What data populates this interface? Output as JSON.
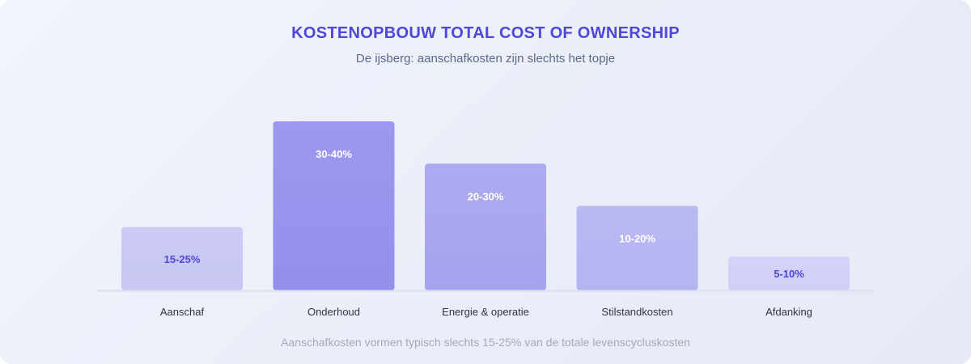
{
  "header": {
    "title": "KOSTENOPBOUW TOTAL COST OF OWNERSHIP",
    "subtitle": "De ijsberg: aanschafkosten zijn slechts het topje"
  },
  "footer": {
    "note": "Aanschafkosten vormen typisch slechts 15-25% van de totale levenscycluskosten"
  },
  "chart_data": {
    "type": "bar",
    "title": "KOSTENOPBOUW TOTAL COST OF OWNERSHIP",
    "subtitle": "De ijsberg: aanschafkosten zijn slechts het topje",
    "categories": [
      "Aanschaf",
      "Onderhoud",
      "Energie & operatie",
      "Stilstandkosten",
      "Afdanking"
    ],
    "values": [
      15,
      40,
      30,
      20,
      8
    ],
    "labels": [
      "15-25%",
      "30-40%",
      "20-30%",
      "10-20%",
      "5-10%"
    ],
    "ylim": [
      0,
      40
    ],
    "grid": false,
    "legend": "none",
    "colors": [
      "#c7c6f4",
      "#958fec",
      "#a6a3ef",
      "#b5b3f1",
      "#d0cff6"
    ],
    "label_colors": [
      "#5046d8",
      "#ffffff",
      "#ffffff",
      "#ffffff",
      "#5046d8"
    ],
    "baseline_color": "#dcdfee",
    "category_label_color": "#2f3447"
  }
}
